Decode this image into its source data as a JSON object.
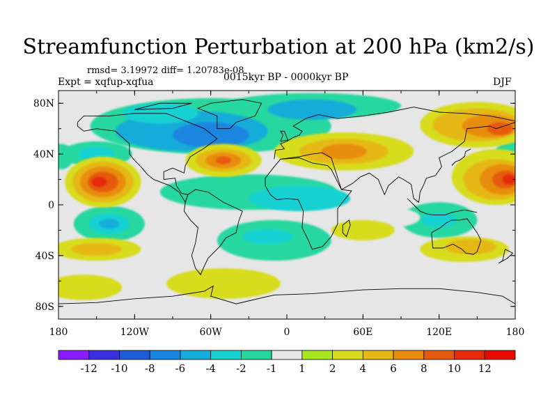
{
  "title": "Streamfunction Perturbation at 200 hPa (km2/s)",
  "stats": "rmsd= 3.19972 diff= 1.20783e-08",
  "experiment": "Expt = xqfup-xqfua",
  "period": "0015kyr BP - 0000kyr BP",
  "season": "DJF",
  "lat_labels": [
    "80N",
    "40N",
    "0",
    "40S",
    "80S"
  ],
  "lon_labels": [
    "180",
    "120W",
    "60W",
    "0",
    "60E",
    "120E",
    "180"
  ],
  "colorbar": {
    "labels": [
      "-12",
      "-10",
      "-8",
      "-6",
      "-4",
      "-2",
      "-1",
      "1",
      "2",
      "4",
      "6",
      "8",
      "10",
      "12"
    ],
    "colors": [
      "#8c1aff",
      "#3a2fe0",
      "#1e5bd9",
      "#1a85e0",
      "#14acd9",
      "#17d1d1",
      "#26d7a0",
      "#e6e6e6",
      "#a8e620",
      "#d7dc1e",
      "#e6b814",
      "#e88c10",
      "#e65a10",
      "#e62a0a",
      "#e60a00"
    ]
  },
  "chart_data": {
    "type": "heatmap",
    "variable": "Streamfunction Perturbation at 200 hPa",
    "units": "km2/s",
    "xrange": [
      -180,
      180
    ],
    "yrange": [
      -90,
      90
    ],
    "levels": [
      -12,
      -10,
      -8,
      -6,
      -4,
      -2,
      -1,
      1,
      2,
      4,
      6,
      8,
      10,
      12
    ],
    "features": [
      {
        "lon": -140,
        "lat": 20,
        "value": 10
      },
      {
        "lon": -50,
        "lat": 35,
        "value": 8
      },
      {
        "lon": 40,
        "lat": 40,
        "value": 6
      },
      {
        "lon": 150,
        "lat": 65,
        "value": 8
      },
      {
        "lon": 160,
        "lat": 20,
        "value": 10
      },
      {
        "lon": -70,
        "lat": 60,
        "value": -8
      },
      {
        "lon": 30,
        "lat": 75,
        "value": -6
      },
      {
        "lon": -150,
        "lat": 40,
        "value": -4
      },
      {
        "lon": -140,
        "lat": -15,
        "value": -6
      },
      {
        "lon": -10,
        "lat": -25,
        "value": -4
      },
      {
        "lon": 120,
        "lat": -10,
        "value": -4
      },
      {
        "lon": -150,
        "lat": -35,
        "value": 4
      },
      {
        "lon": 140,
        "lat": -35,
        "value": 4
      },
      {
        "lon": -50,
        "lat": -65,
        "value": 2
      }
    ]
  }
}
